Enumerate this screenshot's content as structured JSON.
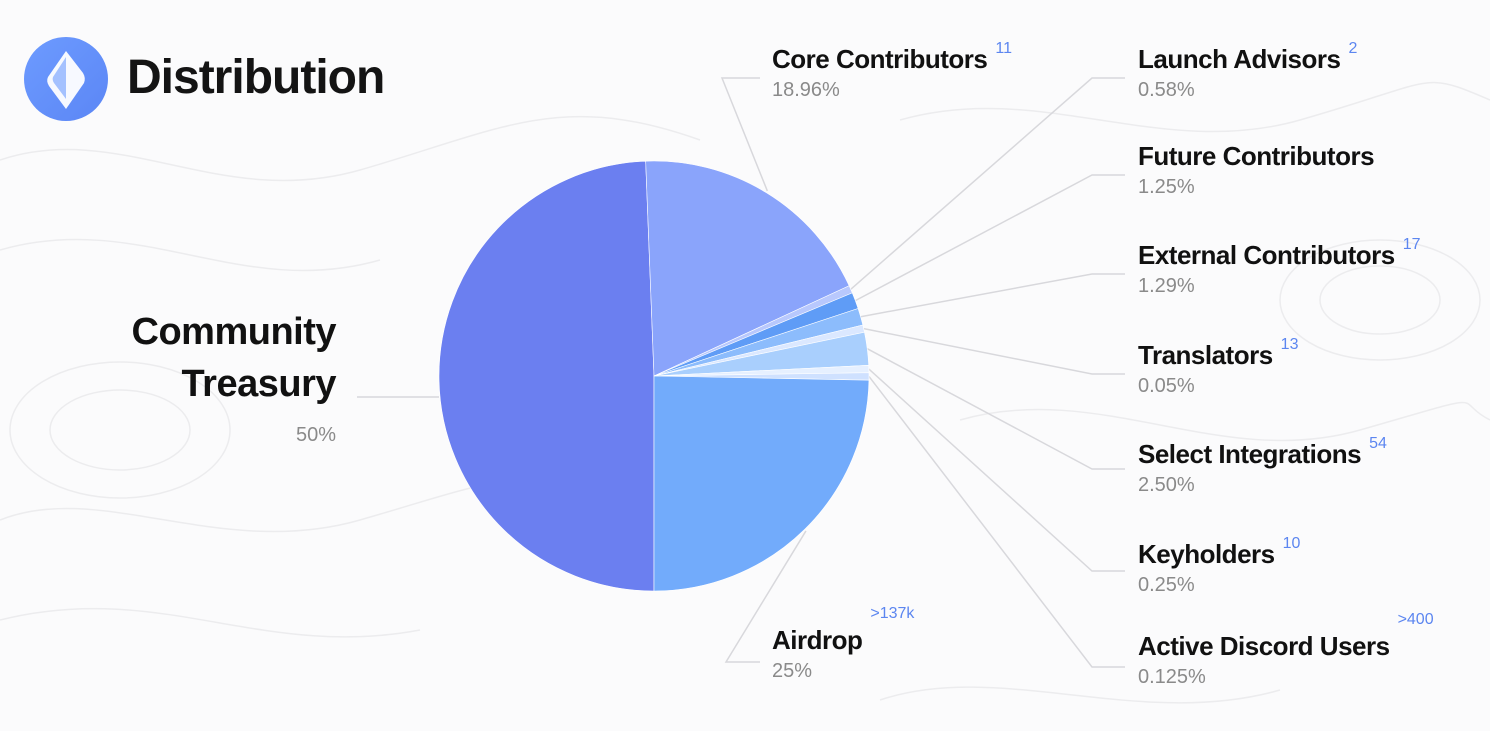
{
  "page": {
    "title": "Distribution"
  },
  "colors": {
    "community_treasury": "#6b7ff0",
    "core_contributors": "#8aa4fb",
    "launch_advisors": "#b8c8fd",
    "future_contributors": "#5f9cf6",
    "external_contributors": "#8cbcfc",
    "translators": "#dbe8ff",
    "select_integrations": "#a9cffd",
    "keyholders": "#e6f0ff",
    "active_discord_users": "#cfe1ff",
    "airdrop": "#72abfb",
    "superscript": "#5c86f0"
  },
  "labels": {
    "community_treasury_line1": "Community",
    "community_treasury_line2": "Treasury",
    "community_treasury_pct": "50%",
    "core_contributors": "Core Contributors",
    "core_contributors_count": "11",
    "core_contributors_pct": "18.96%",
    "launch_advisors": "Launch Advisors",
    "launch_advisors_count": "2",
    "launch_advisors_pct": "0.58%",
    "future_contributors": "Future Contributors",
    "future_contributors_pct": "1.25%",
    "external_contributors": "External Contributors",
    "external_contributors_count": "17",
    "external_contributors_pct": "1.29%",
    "translators": "Translators",
    "translators_count": "13",
    "translators_pct": "0.05%",
    "select_integrations": "Select Integrations",
    "select_integrations_count": "54",
    "select_integrations_pct": "2.50%",
    "keyholders": "Keyholders",
    "keyholders_count": "10",
    "keyholders_pct": "0.25%",
    "active_discord_users": "Active Discord Users",
    "active_discord_users_count": ">400",
    "active_discord_users_pct": "0.125%",
    "airdrop": "Airdrop",
    "airdrop_count": ">137k",
    "airdrop_pct": "25%"
  },
  "chart_data": {
    "type": "pie",
    "title": "Distribution",
    "slices": [
      {
        "label": "Community Treasury",
        "value": 50,
        "key": "community_treasury"
      },
      {
        "label": "Core Contributors",
        "value": 18.96,
        "key": "core_contributors"
      },
      {
        "label": "Launch Advisors",
        "value": 0.58,
        "key": "launch_advisors"
      },
      {
        "label": "Future Contributors",
        "value": 1.25,
        "key": "future_contributors"
      },
      {
        "label": "External Contributors",
        "value": 1.29,
        "key": "external_contributors"
      },
      {
        "label": "Translators",
        "value": 0.05,
        "key": "translators"
      },
      {
        "label": "Select Integrations",
        "value": 2.5,
        "key": "select_integrations"
      },
      {
        "label": "Keyholders",
        "value": 0.25,
        "key": "keyholders"
      },
      {
        "label": "Active Discord Users",
        "value": 0.125,
        "key": "active_discord_users"
      },
      {
        "label": "Airdrop",
        "value": 25,
        "key": "airdrop"
      }
    ]
  }
}
